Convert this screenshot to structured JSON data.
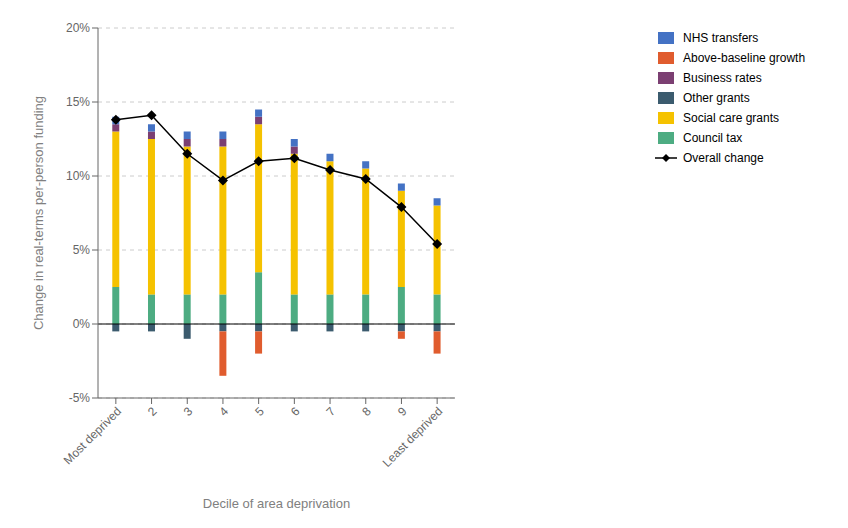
{
  "chart_data": {
    "type": "bar",
    "stacked": true,
    "categories": [
      "Most deprived",
      "2",
      "3",
      "4",
      "5",
      "6",
      "7",
      "8",
      "9",
      "Least deprived"
    ],
    "xlabel": "Decile of area deprivation",
    "ylabel": "Change in real-terms per-person funding",
    "ylim": [
      -5,
      20
    ],
    "yticks": [
      {
        "value": -5,
        "label": "-5%"
      },
      {
        "value": 0,
        "label": "0%"
      },
      {
        "value": 5,
        "label": "5%"
      },
      {
        "value": 10,
        "label": "10%"
      },
      {
        "value": 15,
        "label": "15%"
      },
      {
        "value": 20,
        "label": "20%"
      }
    ],
    "grid": true,
    "legend": "upper right",
    "series": [
      {
        "name": "NHS transfers",
        "color": "#4472C4",
        "values": [
          0.5,
          0.5,
          0.5,
          0.5,
          0.5,
          0.5,
          0.5,
          0.5,
          0.5,
          0.5
        ]
      },
      {
        "name": "Above-baseline growth",
        "color": "#E05C2E",
        "values": [
          0.0,
          0.0,
          0.0,
          -3.0,
          -1.5,
          0.0,
          0.0,
          0.0,
          -0.5,
          -1.5
        ]
      },
      {
        "name": "Business rates",
        "color": "#7B3F72",
        "values": [
          0.5,
          0.5,
          0.5,
          0.5,
          0.5,
          0.5,
          0.0,
          0.0,
          0.0,
          0.0
        ]
      },
      {
        "name": "Other grants",
        "color": "#3B5B6E",
        "values": [
          -0.5,
          -0.5,
          -1.0,
          -0.5,
          -0.5,
          -0.5,
          -0.5,
          -0.5,
          -0.5,
          -0.5
        ]
      },
      {
        "name": "Social care grants",
        "color": "#F5C200",
        "values": [
          10.5,
          10.5,
          10.0,
          10.0,
          10.0,
          9.5,
          9.0,
          8.5,
          6.5,
          6.0
        ]
      },
      {
        "name": "Council tax",
        "color": "#4DAC82",
        "values": [
          2.5,
          2.0,
          2.0,
          2.0,
          3.5,
          2.0,
          2.0,
          2.0,
          2.5,
          2.0
        ]
      },
      {
        "name": "Overall change",
        "type": "line",
        "color": "#000000",
        "marker": "diamond",
        "values": [
          13.8,
          14.1,
          11.5,
          9.7,
          11.0,
          11.2,
          10.4,
          9.8,
          7.9,
          5.4
        ]
      }
    ]
  }
}
